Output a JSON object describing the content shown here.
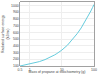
{
  "chart_data": {
    "type": "line",
    "xlabel": "Mass of propane at stoichiometry (g)",
    "ylabel": "Radiated surface energy\n(kJ/m²)",
    "x": [
      0.5,
      1,
      2,
      3,
      4,
      5,
      6,
      7,
      8,
      9,
      10,
      15,
      20,
      30,
      40,
      50,
      60,
      70,
      80,
      90,
      100
    ],
    "values": [
      100,
      130,
      165,
      195,
      220,
      245,
      265,
      285,
      303,
      320,
      336,
      410,
      475,
      580,
      665,
      740,
      805,
      863,
      917,
      967,
      1013
    ],
    "color": "#66ccdd",
    "xlim": [
      0.5,
      100
    ],
    "ylim": [
      100,
      1050
    ],
    "xticks": [
      0.5,
      1,
      10,
      100
    ],
    "yticks": [
      100,
      200,
      300,
      400,
      500,
      600,
      700,
      800,
      900,
      1000
    ],
    "log": "x",
    "grid": true
  }
}
